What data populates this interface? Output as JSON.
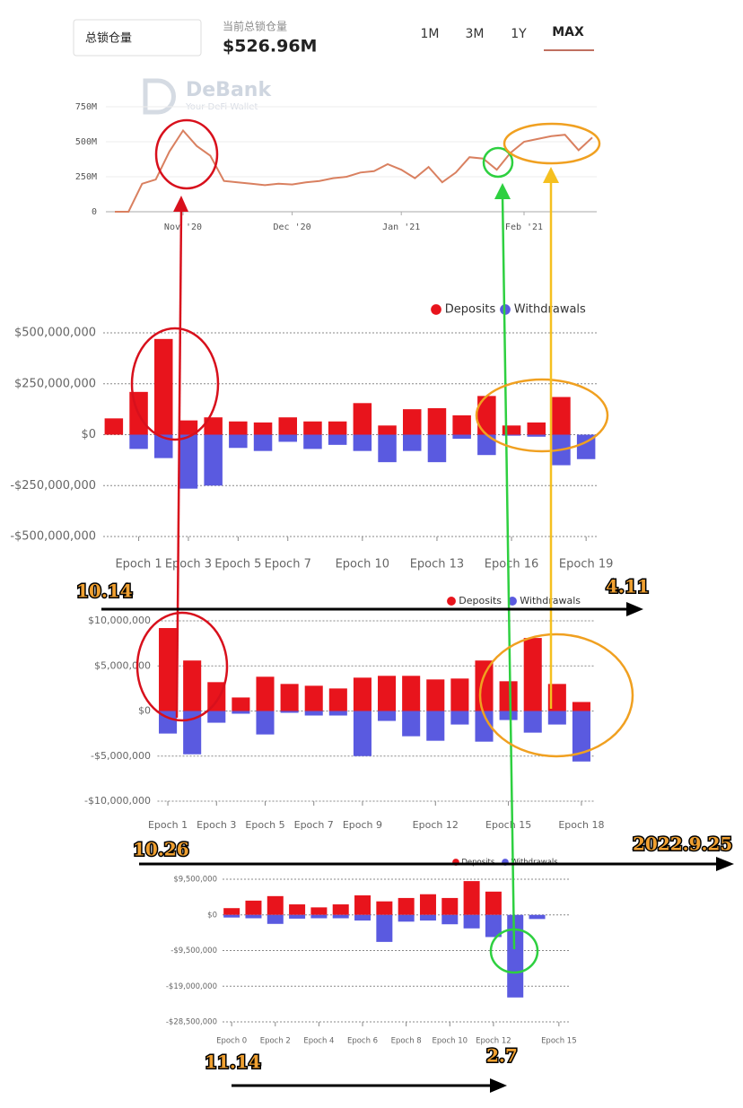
{
  "header": {
    "selector": "总锁仓量",
    "subtitle": "当前总锁仓量",
    "headline": "$526.96M",
    "ranges": [
      "1M",
      "3M",
      "1Y",
      "MAX"
    ],
    "watermark": [
      "DeBank",
      "Your DeFi Wallet"
    ]
  },
  "annotations": [
    "10.14",
    "4.11",
    "10.26",
    "2022.9.25",
    "11.14",
    "2.7"
  ],
  "chart_data": [
    {
      "type": "line",
      "color": "#d98060",
      "categories": [
        null,
        null,
        null,
        null,
        null,
        "Nov '20",
        null,
        null,
        null,
        null,
        null,
        null,
        null,
        "Dec '20",
        null,
        null,
        null,
        null,
        null,
        null,
        null,
        "Jan '21",
        null,
        null,
        null,
        null,
        null,
        null,
        null,
        null,
        "Feb '21",
        null,
        null,
        null,
        null,
        null
      ],
      "values": [
        0,
        0,
        200,
        230,
        430,
        580,
        470,
        400,
        220,
        210,
        200,
        190,
        200,
        195,
        210,
        220,
        240,
        250,
        280,
        290,
        340,
        300,
        240,
        320,
        210,
        280,
        390,
        380,
        300,
        420,
        500,
        520,
        540,
        550,
        440,
        530
      ],
      "ylim": [
        0,
        750
      ],
      "yticks": [
        {
          "value": 0,
          "label": "0"
        },
        {
          "value": 250,
          "label": "250M"
        },
        {
          "value": 500,
          "label": "500M"
        },
        {
          "value": 750,
          "label": "750M"
        }
      ],
      "grid": true
    },
    {
      "type": "bar",
      "categories": [
        null,
        "Epoch 1",
        null,
        "Epoch 3",
        null,
        "Epoch 5",
        null,
        "Epoch 7",
        null,
        null,
        "Epoch 10",
        null,
        null,
        "Epoch 13",
        null,
        null,
        "Epoch 16",
        null,
        null,
        "Epoch 19"
      ],
      "series": [
        {
          "name": "Deposits",
          "color": "#e8141c",
          "values": [
            80000000,
            210000000,
            470000000,
            70000000,
            85000000,
            65000000,
            60000000,
            85000000,
            65000000,
            65000000,
            155000000,
            45000000,
            125000000,
            130000000,
            95000000,
            190000000,
            45000000,
            60000000,
            185000000,
            0
          ]
        },
        {
          "name": "Withdrawals",
          "color": "#5a5ae0",
          "values": [
            0,
            -70000000,
            -115000000,
            -265000000,
            -250000000,
            -65000000,
            -80000000,
            -35000000,
            -70000000,
            -50000000,
            -80000000,
            -135000000,
            -80000000,
            -135000000,
            -20000000,
            -100000000,
            -5000000,
            -10000000,
            -150000000,
            -120000000
          ]
        }
      ],
      "ylim": [
        -500000000,
        500000000
      ],
      "yticks": [
        {
          "value": -500000000,
          "label": "-$500,000,000"
        },
        {
          "value": -250000000,
          "label": "-$250,000,000"
        },
        {
          "value": 0,
          "label": "$0"
        },
        {
          "value": 250000000,
          "label": "$250,000,000"
        },
        {
          "value": 500000000,
          "label": "$500,000,000"
        }
      ],
      "grid": true
    },
    {
      "type": "bar",
      "categories": [
        "Epoch 1",
        null,
        "Epoch 3",
        null,
        "Epoch 5",
        null,
        "Epoch 7",
        null,
        "Epoch 9",
        null,
        null,
        "Epoch 12",
        null,
        null,
        "Epoch 15",
        null,
        null,
        "Epoch 18"
      ],
      "series": [
        {
          "name": "Deposits",
          "color": "#e8141c",
          "values": [
            9200000,
            5600000,
            3200000,
            1500000,
            3800000,
            3000000,
            2800000,
            2500000,
            3700000,
            3900000,
            3900000,
            3500000,
            3600000,
            5600000,
            3300000,
            8100000,
            3000000,
            1000000
          ]
        },
        {
          "name": "Withdrawals",
          "color": "#5a5ae0",
          "values": [
            -2500000,
            -4800000,
            -1300000,
            -300000,
            -2600000,
            -200000,
            -500000,
            -500000,
            -5000000,
            -1100000,
            -2800000,
            -3300000,
            -1500000,
            -3400000,
            -1000000,
            -2400000,
            -1500000,
            -5600000
          ]
        }
      ],
      "ylim": [
        -10000000,
        10000000
      ],
      "yticks": [
        {
          "value": -10000000,
          "label": "-$10,000,000"
        },
        {
          "value": -5000000,
          "label": "-$5,000,000"
        },
        {
          "value": 0,
          "label": "$0"
        },
        {
          "value": 5000000,
          "label": "$5,000,000"
        },
        {
          "value": 10000000,
          "label": "$10,000,000"
        }
      ],
      "grid": true
    },
    {
      "type": "bar",
      "categories": [
        "Epoch 0",
        null,
        "Epoch 2",
        null,
        "Epoch 4",
        null,
        "Epoch 6",
        null,
        "Epoch 8",
        null,
        "Epoch 10",
        null,
        "Epoch 12",
        null,
        null,
        "Epoch 15"
      ],
      "series": [
        {
          "name": "Deposits",
          "color": "#e8141c",
          "values": [
            1800000,
            3800000,
            5000000,
            2800000,
            2000000,
            2800000,
            5200000,
            3600000,
            4500000,
            5500000,
            4500000,
            9000000,
            6200000,
            0,
            0,
            0
          ]
        },
        {
          "name": "Withdrawals",
          "color": "#5a5ae0",
          "values": [
            -700000,
            -900000,
            -2400000,
            -1000000,
            -900000,
            -900000,
            -1500000,
            -7200000,
            -1800000,
            -1500000,
            -2500000,
            -3600000,
            -5900000,
            -22000000,
            -1100000,
            0
          ]
        }
      ],
      "ylim": [
        -28500000,
        9500000
      ],
      "yticks": [
        {
          "value": -28500000,
          "label": "-$28,500,000"
        },
        {
          "value": -19000000,
          "label": "-$19,000,000"
        },
        {
          "value": -9500000,
          "label": "-$9,500,000"
        },
        {
          "value": 0,
          "label": "$0"
        },
        {
          "value": 9500000,
          "label": "$9,500,000"
        }
      ],
      "grid": true
    }
  ]
}
